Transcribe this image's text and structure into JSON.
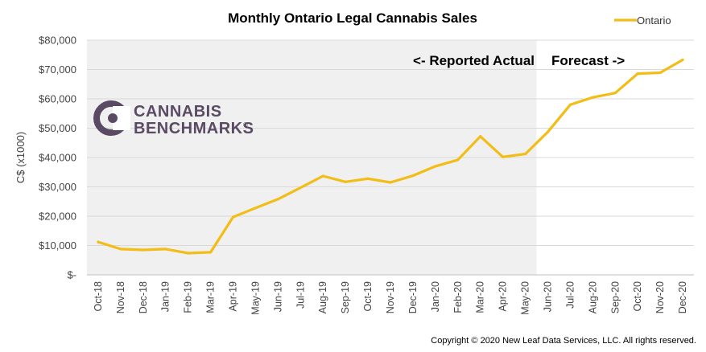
{
  "chart_data": {
    "type": "line",
    "title": "Monthly Ontario Legal Cannabis Sales",
    "ylabel": "C$ (x1000)",
    "xlabel": "",
    "ylim": [
      0,
      80000
    ],
    "y_ticks": [
      0,
      10000,
      20000,
      30000,
      40000,
      50000,
      60000,
      70000,
      80000
    ],
    "y_tick_labels": [
      "$-",
      "$10,000",
      "$20,000",
      "$30,000",
      "$40,000",
      "$50,000",
      "$60,000",
      "$70,000",
      "$80,000"
    ],
    "categories": [
      "Oct-18",
      "Nov-18",
      "Dec-18",
      "Jan-19",
      "Feb-19",
      "Mar-19",
      "Apr-19",
      "May-19",
      "Jun-19",
      "Jul-19",
      "Aug-19",
      "Sep-19",
      "Oct-19",
      "Nov-19",
      "Dec-19",
      "Jan-20",
      "Feb-20",
      "Mar-20",
      "Apr-20",
      "May-20",
      "Jun-20",
      "Jul-20",
      "Aug-20",
      "Sep-20",
      "Oct-20",
      "Nov-20",
      "Dec-20"
    ],
    "series": [
      {
        "name": "Ontario",
        "color": "#f2bd17",
        "values": [
          11200,
          8800,
          8500,
          8800,
          7400,
          7700,
          19700,
          22800,
          25800,
          29700,
          33700,
          31700,
          32800,
          31500,
          33800,
          37000,
          39200,
          47200,
          40200,
          41200,
          48700,
          58000,
          60500,
          62000,
          68600,
          68900,
          73300
        ]
      }
    ],
    "shaded_region": {
      "from": "Oct-18",
      "to": "May-20",
      "color": "#f0f0f0"
    },
    "annotations": {
      "actual": "<- Reported Actual",
      "forecast": "Forecast ->"
    },
    "grid": true,
    "legend_position": "top-right"
  },
  "logo": {
    "line1": "CANNABIS",
    "line2": "BENCHMARKS",
    "mark": "®",
    "color": "#5a4a63"
  },
  "copyright": "Copyright © 2020 New Leaf Data Services, LLC.  All rights reserved."
}
